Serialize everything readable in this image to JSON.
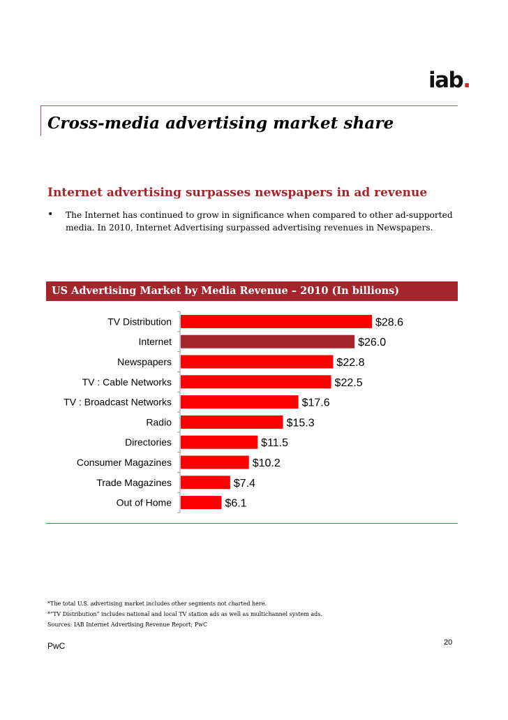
{
  "header": {
    "logo_text": "iab",
    "logo_dot": ".",
    "title": "Cross-media advertising market share"
  },
  "section": {
    "subtitle": "Internet advertising surpasses newspapers in ad revenue",
    "bullet_marker": "•",
    "bullet_text": "The Internet has continued to grow in significance when compared to other ad-supported media.  In 2010, Internet Advertising surpassed advertising revenues in Newspapers."
  },
  "chart_banner": "US Advertising Market by Media Revenue – 2010 (In billions)",
  "chart_data": {
    "type": "bar",
    "orientation": "horizontal",
    "title": "US Advertising Market by Media Revenue – 2010 (In billions)",
    "categories": [
      "TV Distribution",
      "Internet",
      "Newspapers",
      "TV : Cable Networks",
      "TV : Broadcast Networks",
      "Radio",
      "Directories",
      "Consumer Magazines",
      "Trade Magazines",
      "Out of Home"
    ],
    "values": [
      28.6,
      26.0,
      22.8,
      22.5,
      17.6,
      15.3,
      11.5,
      10.2,
      7.4,
      6.1
    ],
    "labels": [
      "$28.6",
      "$26.0",
      "$22.8",
      "$22.5",
      "$17.6",
      "$15.3",
      "$11.5",
      "$10.2",
      "$7.4",
      "$6.1"
    ],
    "highlight_category": "Internet",
    "xlim": [
      0,
      30
    ],
    "colors": {
      "bar": "#ff0000",
      "highlight": "#a4252b"
    },
    "grid": false,
    "legend": "none"
  },
  "footnotes": [
    "*The total U.S. advertising market includes other segments not charted here.",
    "*“TV Distribution” includes national and local TV station ads as well as multichannel system ads.",
    "Sources: IAB Internet Advertising Revenue Report; PwC"
  ],
  "footer": {
    "left": "PwC",
    "page_number": "20"
  },
  "colors": {
    "accent": "#a4252b",
    "rule": "#c0504d",
    "bar": "#ff0000"
  }
}
